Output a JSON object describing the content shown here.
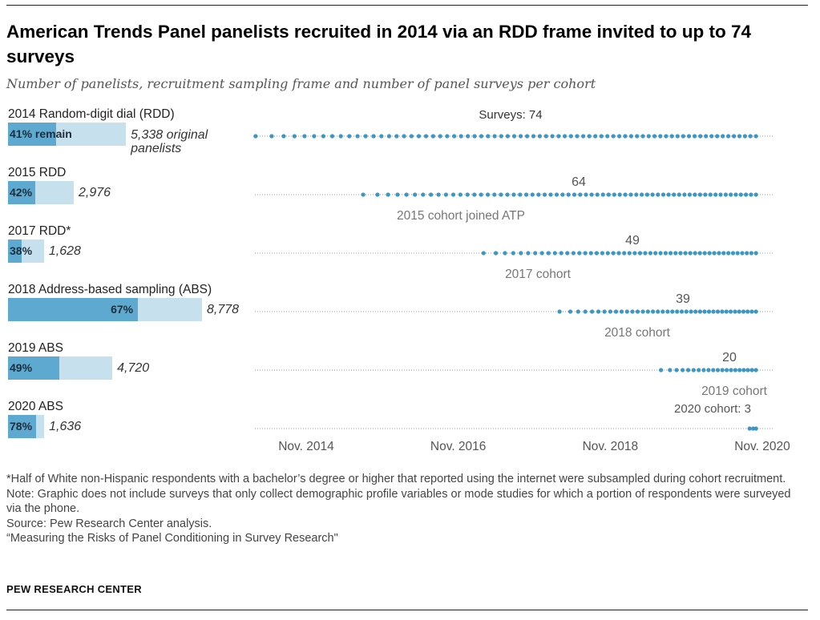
{
  "title": "American Trends Panel panelists recruited in 2014 via an RDD frame invited to up to 74 surveys",
  "subtitle": "Number of panelists, recruitment sampling frame and number of panel surveys per cohort",
  "colors": {
    "remain": "#5ea9cf",
    "original": "#c7e0ee",
    "dot": "#3c97c4",
    "dotted_line": "#999999",
    "annotation": "#777777"
  },
  "chart_data": {
    "type": "dot-timeline",
    "x_axis": {
      "type": "date",
      "range": [
        "2014-03",
        "2020-11"
      ],
      "ticks": [
        {
          "date": "2014-11",
          "label": "Nov. 2014"
        },
        {
          "date": "2016-11",
          "label": "Nov. 2016"
        },
        {
          "date": "2018-11",
          "label": "Nov. 2018"
        },
        {
          "date": "2020-11",
          "label": "Nov. 2020"
        }
      ]
    },
    "cohorts": [
      {
        "label": "2014 Random-digit dial (RDD)",
        "remain_pct": 41,
        "pct_label": "41% remain",
        "original_line1": "5,338 original",
        "original_line2": "panelists",
        "original": 5338,
        "surveys": 74,
        "survey_label": "Surveys: 74",
        "joined_label": "",
        "start": "2014-03",
        "end": "2020-10"
      },
      {
        "label": "2015 RDD",
        "remain_pct": 42,
        "pct_label": "42%",
        "original_line1": "2,976",
        "original_line2": "",
        "original": 2976,
        "surveys": 64,
        "survey_label": "64",
        "joined_label": "2015 cohort joined ATP",
        "start": "2015-08",
        "end": "2020-10"
      },
      {
        "label": "2017 RDD*",
        "remain_pct": 38,
        "pct_label": "38%",
        "original_line1": "1,628",
        "original_line2": "",
        "original": 1628,
        "surveys": 49,
        "survey_label": "49",
        "joined_label": "2017 cohort",
        "start": "2017-03",
        "end": "2020-10"
      },
      {
        "label": "2018 Address-based sampling (ABS)",
        "remain_pct": 67,
        "pct_label": "67%",
        "original_line1": "8,778",
        "original_line2": "",
        "original": 8778,
        "surveys": 39,
        "survey_label": "39",
        "joined_label": "2018 cohort",
        "start": "2018-03",
        "end": "2020-10"
      },
      {
        "label": "2019 ABS",
        "remain_pct": 49,
        "pct_label": "49%",
        "original_line1": "4,720",
        "original_line2": "",
        "original": 4720,
        "surveys": 20,
        "survey_label": "20",
        "joined_label": "2019 cohort",
        "start": "2019-07",
        "end": "2020-10"
      },
      {
        "label": "2020 ABS",
        "remain_pct": 78,
        "pct_label": "78%",
        "original_line1": "1,636",
        "original_line2": "",
        "original": 1636,
        "surveys": 3,
        "survey_label": "2020 cohort: 3",
        "joined_label": "",
        "start": "2020-09",
        "end": "2020-10"
      }
    ]
  },
  "footnotes": {
    "asterisk": "*Half of White non-Hispanic respondents with a bachelor’s degree or higher that reported using the internet were subsampled during cohort recruitment.",
    "note": "Note: Graphic does not include surveys that only collect demographic profile variables or mode studies for which a portion of respondents were surveyed via the phone.",
    "source": "Source: Pew Research Center analysis.",
    "report": "“Measuring the Risks of Panel Conditioning in Survey Research\""
  },
  "brand": "PEW RESEARCH CENTER"
}
